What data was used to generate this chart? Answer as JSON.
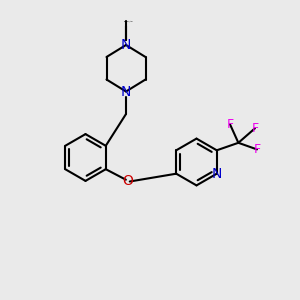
{
  "bg_color": "#eaeaea",
  "bond_color": "#000000",
  "N_color": "#0000cc",
  "O_color": "#cc0000",
  "F_color": "#ee00ee",
  "line_width": 1.5,
  "font_size": 9,
  "fig_width": 3.0,
  "fig_height": 3.0,
  "dpi": 100,
  "xlim": [
    0,
    10
  ],
  "ylim": [
    0,
    10
  ]
}
